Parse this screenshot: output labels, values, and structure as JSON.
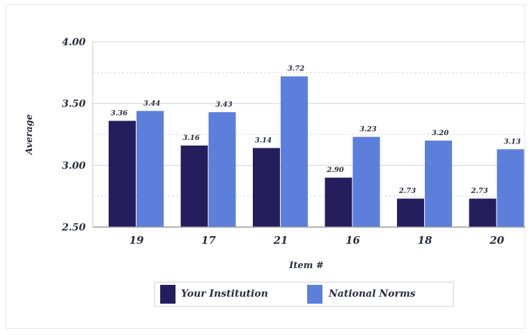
{
  "chart_data": {
    "type": "bar",
    "title": "",
    "xlabel": "Item #",
    "ylabel": "Average",
    "categories": [
      "19",
      "17",
      "21",
      "16",
      "18",
      "20"
    ],
    "series": [
      {
        "name": "Your Institution",
        "values": [
          3.36,
          3.16,
          3.14,
          2.9,
          2.73,
          2.73
        ],
        "labels": [
          "3.36",
          "3.16",
          "3.14",
          "2.90",
          "2.73",
          "2.73"
        ],
        "color": "#241f5c"
      },
      {
        "name": "National Norms",
        "values": [
          3.44,
          3.43,
          3.72,
          3.23,
          3.2,
          3.13
        ],
        "labels": [
          "3.44",
          "3.43",
          "3.72",
          "3.23",
          "3.20",
          "3.13"
        ],
        "color": "#5b7fdb"
      }
    ],
    "ylim": [
      2.5,
      4.0
    ],
    "yticks": [
      "2.50",
      "3.00",
      "3.50",
      "4.00"
    ],
    "ytick_values": [
      2.5,
      3.0,
      3.5,
      4.0
    ],
    "grid": true,
    "legend_position": "bottom"
  }
}
